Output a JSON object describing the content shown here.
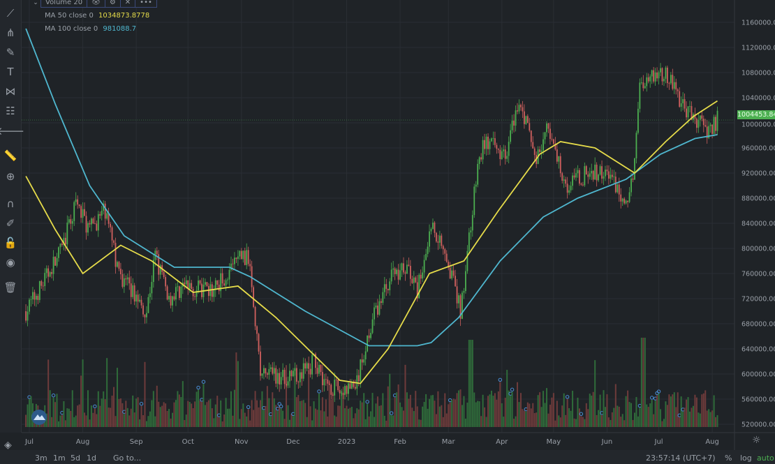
{
  "legend": {
    "volume_label": "Volume 20",
    "volume_icons": [
      "eye-icon",
      "gear-icon",
      "close-icon",
      "more-icon"
    ],
    "ma50_label": "MA 50 close 0",
    "ma50_value": "1034873.8778",
    "ma100_label": "MA 100 close 0",
    "ma100_value": "981088.7"
  },
  "toolbar": [
    "trend-line-icon",
    "pitchfork-icon",
    "brush-icon",
    "text-icon",
    "pattern-icon",
    "fib-icon",
    "back-arrow-icon",
    "ruler-icon",
    "zoom-in-icon",
    "magnet-icon",
    "lock-drawing-icon",
    "unlock-icon",
    "eye-icon",
    "trash-icon"
  ],
  "price_tag": "1004453.84",
  "bottom_bar": {
    "ranges": [
      "3m",
      "1m",
      "5d",
      "1d"
    ],
    "goto": "Go to...",
    "clock": "23:57:14 (UTC+7)",
    "percent": "%",
    "log": "log",
    "auto": "auto"
  },
  "colors": {
    "up": "#4caf50",
    "down": "#d0605e",
    "ma50": "#e6dc4a",
    "ma100": "#4fb7cf",
    "background": "#1f2327",
    "price_tag": "#4caf50"
  },
  "chart_data": {
    "type": "candlestick",
    "y_ticks": [
      "1160000.00",
      "1120000.00",
      "1080000.00",
      "1040000.00",
      "1000000.00",
      "960000.00",
      "920000.00",
      "880000.00",
      "840000.00",
      "800000.00",
      "760000.00",
      "720000.00",
      "680000.00",
      "640000.00",
      "600000.00",
      "560000.00",
      "520000.00"
    ],
    "ylim": [
      520000,
      1160000
    ],
    "x_ticks": [
      "Jul",
      "Aug",
      "Sep",
      "Oct",
      "Nov",
      "Dec",
      "2023",
      "Feb",
      "Mar",
      "Apr",
      "May",
      "Jun",
      "Jul",
      "Aug"
    ],
    "last_price": 1004453.84,
    "price_path": [
      [
        "2022-06-29",
        700000
      ],
      [
        "2022-07-08",
        740000
      ],
      [
        "2022-07-20",
        800000
      ],
      [
        "2022-07-28",
        870000
      ],
      [
        "2022-08-05",
        830000
      ],
      [
        "2022-08-14",
        860000
      ],
      [
        "2022-08-22",
        760000
      ],
      [
        "2022-08-30",
        730000
      ],
      [
        "2022-09-07",
        700000
      ],
      [
        "2022-09-12",
        790000
      ],
      [
        "2022-09-20",
        720000
      ],
      [
        "2022-09-28",
        740000
      ],
      [
        "2022-10-14",
        730000
      ],
      [
        "2022-10-24",
        760000
      ],
      [
        "2022-10-31",
        790000
      ],
      [
        "2022-11-06",
        780000
      ],
      [
        "2022-11-12",
        600000
      ],
      [
        "2022-12-01",
        595000
      ],
      [
        "2022-12-14",
        620000
      ],
      [
        "2022-12-20",
        585000
      ],
      [
        "2022-12-30",
        570000
      ],
      [
        "2023-01-07",
        585000
      ],
      [
        "2023-01-15",
        680000
      ],
      [
        "2023-01-27",
        760000
      ],
      [
        "2023-02-05",
        770000
      ],
      [
        "2023-02-11",
        730000
      ],
      [
        "2023-02-19",
        840000
      ],
      [
        "2023-02-27",
        800000
      ],
      [
        "2023-03-08",
        700000
      ],
      [
        "2023-03-18",
        930000
      ],
      [
        "2023-03-22",
        970000
      ],
      [
        "2023-04-03",
        950000
      ],
      [
        "2023-04-11",
        1040000
      ],
      [
        "2023-04-21",
        940000
      ],
      [
        "2023-04-27",
        990000
      ],
      [
        "2023-05-09",
        900000
      ],
      [
        "2023-05-21",
        920000
      ],
      [
        "2023-06-02",
        920000
      ],
      [
        "2023-06-12",
        870000
      ],
      [
        "2023-06-16",
        920000
      ],
      [
        "2023-06-20",
        1060000
      ],
      [
        "2023-06-28",
        1080000
      ],
      [
        "2023-07-08",
        1070000
      ],
      [
        "2023-07-16",
        1020000
      ],
      [
        "2023-07-29",
        990000
      ],
      [
        "2023-08-04",
        1004453.84
      ]
    ],
    "ma50": [
      [
        "2022-06-29",
        915000
      ],
      [
        "2022-07-16",
        830000
      ],
      [
        "2022-08-01",
        760000
      ],
      [
        "2022-08-23",
        805000
      ],
      [
        "2022-09-10",
        780000
      ],
      [
        "2022-10-04",
        730000
      ],
      [
        "2022-10-30",
        740000
      ],
      [
        "2022-11-21",
        690000
      ],
      [
        "2022-12-28",
        590000
      ],
      [
        "2023-01-09",
        585000
      ],
      [
        "2023-01-25",
        640000
      ],
      [
        "2023-02-18",
        760000
      ],
      [
        "2023-03-10",
        780000
      ],
      [
        "2023-03-30",
        860000
      ],
      [
        "2023-04-23",
        950000
      ],
      [
        "2023-05-05",
        970000
      ],
      [
        "2023-05-25",
        960000
      ],
      [
        "2023-06-17",
        920000
      ],
      [
        "2023-07-05",
        970000
      ],
      [
        "2023-07-21",
        1010000
      ],
      [
        "2023-08-04",
        1034873.88
      ]
    ],
    "ma100": [
      [
        "2022-06-29",
        1150000
      ],
      [
        "2022-07-16",
        1030000
      ],
      [
        "2022-08-05",
        900000
      ],
      [
        "2022-08-25",
        820000
      ],
      [
        "2022-09-23",
        770000
      ],
      [
        "2022-10-25",
        770000
      ],
      [
        "2022-11-06",
        755000
      ],
      [
        "2022-12-08",
        700000
      ],
      [
        "2023-01-14",
        645000
      ],
      [
        "2023-02-11",
        645000
      ],
      [
        "2023-02-19",
        650000
      ],
      [
        "2023-03-07",
        690000
      ],
      [
        "2023-03-31",
        780000
      ],
      [
        "2023-04-25",
        850000
      ],
      [
        "2023-05-15",
        880000
      ],
      [
        "2023-06-12",
        910000
      ],
      [
        "2023-07-02",
        950000
      ],
      [
        "2023-07-22",
        975000
      ],
      [
        "2023-08-04",
        981088.7
      ]
    ]
  }
}
